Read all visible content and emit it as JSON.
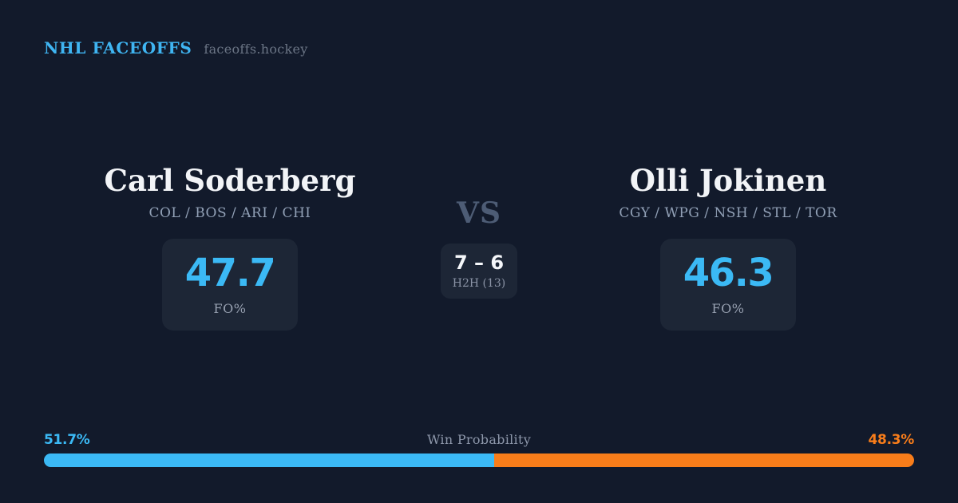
{
  "header": {
    "brand": "NHL FACEOFFS",
    "site": "faceoffs.hockey"
  },
  "players": {
    "left": {
      "name": "Carl Soderberg",
      "teams": "COL / BOS / ARI / CHI",
      "fo_pct": "47.7",
      "fo_label": "FO%"
    },
    "right": {
      "name": "Olli Jokinen",
      "teams": "CGY / WPG / NSH / STL / TOR",
      "fo_pct": "46.3",
      "fo_label": "FO%"
    }
  },
  "versus": {
    "label": "VS",
    "h2h_score": "7 – 6",
    "h2h_label": "H2H (13)"
  },
  "win_probability": {
    "title": "Win Probability",
    "left_pct_label": "51.7%",
    "right_pct_label": "48.3%",
    "left_value": 51.7,
    "right_value": 48.3
  },
  "theme": {
    "background": "#121a2b",
    "panel": "#1d2636",
    "accent_blue": "#3bb9f5",
    "accent_orange": "#f87d1a",
    "text_primary": "#f2f4f7",
    "text_muted": "#91a0b6"
  },
  "chart_data": [
    {
      "type": "bar",
      "title": "Win Probability",
      "categories": [
        "Win Probability"
      ],
      "series": [
        {
          "name": "Carl Soderberg",
          "values": [
            51.7
          ],
          "color": "#3bb9f5"
        },
        {
          "name": "Olli Jokinen",
          "values": [
            48.3
          ],
          "color": "#f87d1a"
        }
      ],
      "layout": "horizontal-stacked",
      "xlim": [
        0,
        100
      ],
      "annotations": [
        "51.7%",
        "48.3%"
      ],
      "grid": false,
      "legend": false
    },
    {
      "type": "bar",
      "title": "FO%",
      "categories": [
        "Carl Soderberg",
        "Olli Jokinen"
      ],
      "values": [
        47.7,
        46.3
      ],
      "xlabel": "",
      "ylabel": "FO%"
    },
    {
      "type": "bar",
      "title": "H2H (13)",
      "categories": [
        "Carl Soderberg",
        "Olli Jokinen"
      ],
      "values": [
        7,
        6
      ]
    }
  ]
}
